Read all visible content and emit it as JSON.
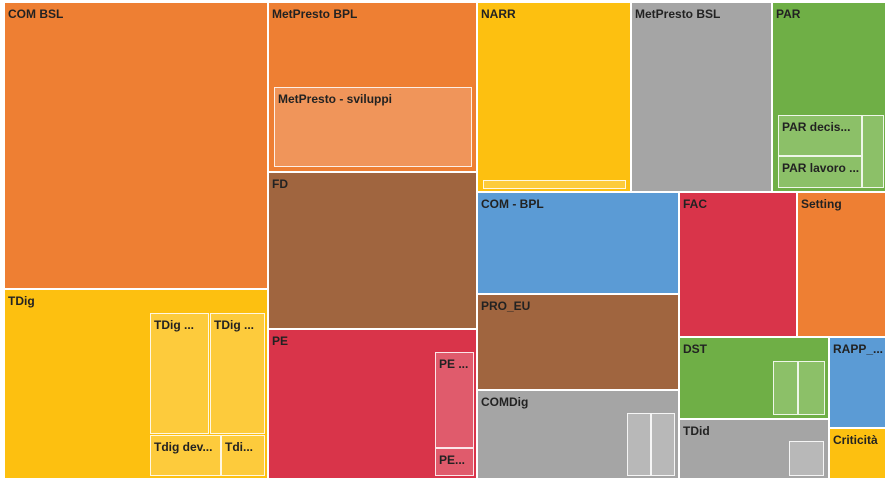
{
  "tiles": [
    {
      "label": "COM BSL"
    },
    {
      "label": "TDig",
      "children": [
        "TDig ...",
        "TDig ...",
        "Tdig dev...",
        "Tdi..."
      ]
    },
    {
      "label": "MetPresto BPL",
      "children": [
        "MetPresto - sviluppi"
      ]
    },
    {
      "label": "FD"
    },
    {
      "label": "PE",
      "children": [
        "PE ...",
        "PE..."
      ]
    },
    {
      "label": "NARR"
    },
    {
      "label": "MetPresto BSL"
    },
    {
      "label": "PAR",
      "children": [
        "PAR decis...",
        "PAR lavoro ..."
      ]
    },
    {
      "label": "COM - BPL"
    },
    {
      "label": "PRO_EU"
    },
    {
      "label": "COMDig"
    },
    {
      "label": "FAC"
    },
    {
      "label": "Setting"
    },
    {
      "label": "DST"
    },
    {
      "label": "TDid"
    },
    {
      "label": "RAPP_..."
    },
    {
      "label": "Criticità"
    }
  ]
}
